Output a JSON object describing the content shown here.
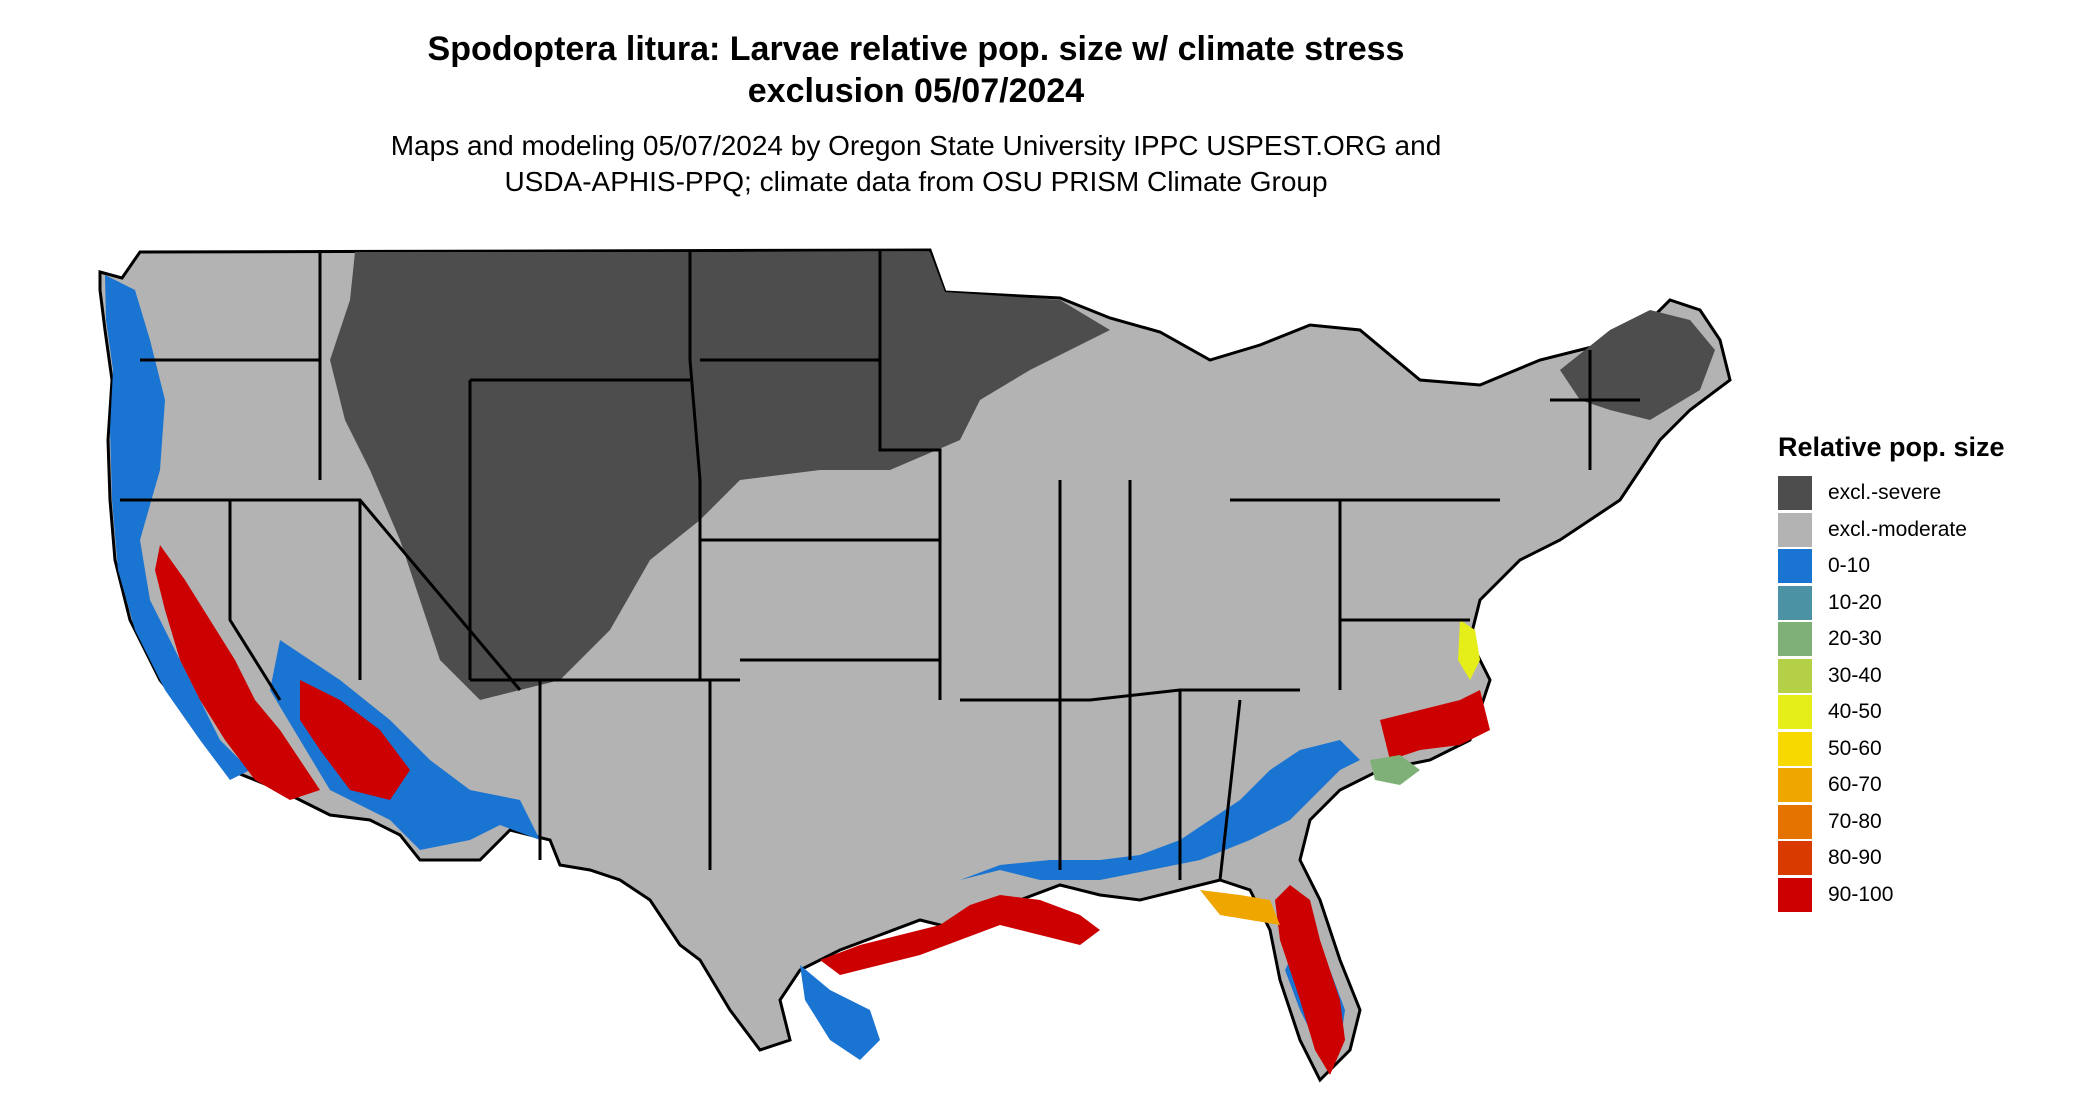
{
  "header": {
    "title_line1": "Spodoptera litura: Larvae relative pop. size w/ climate stress",
    "title_line2": "exclusion 05/07/2024",
    "subtitle_line1": "Maps and modeling 05/07/2024 by Oregon State University IPPC USPEST.ORG and",
    "subtitle_line2": "USDA-APHIS-PPQ; climate data from OSU PRISM Climate Group"
  },
  "legend": {
    "title": "Relative pop. size",
    "items": [
      {
        "label": "excl.-severe",
        "color": "#4d4d4d"
      },
      {
        "label": "excl.-moderate",
        "color": "#b3b3b3"
      },
      {
        "label": "0-10",
        "color": "#1a74d2"
      },
      {
        "label": "10-20",
        "color": "#4b92a5"
      },
      {
        "label": "20-30",
        "color": "#7fb077"
      },
      {
        "label": "30-40",
        "color": "#b4d046"
      },
      {
        "label": "40-50",
        "color": "#e5ee19"
      },
      {
        "label": "50-60",
        "color": "#f7d900"
      },
      {
        "label": "60-70",
        "color": "#efa700"
      },
      {
        "label": "70-80",
        "color": "#e57300"
      },
      {
        "label": "80-90",
        "color": "#d93a00"
      },
      {
        "label": "90-100",
        "color": "#cc0000"
      }
    ]
  },
  "map": {
    "region": "contiguous-united-states",
    "colors": {
      "excl_severe": "#4d4d4d",
      "excl_moderate": "#b3b3b3",
      "low": "#1a74d2",
      "high": "#cc0000",
      "border": "#000000"
    }
  }
}
